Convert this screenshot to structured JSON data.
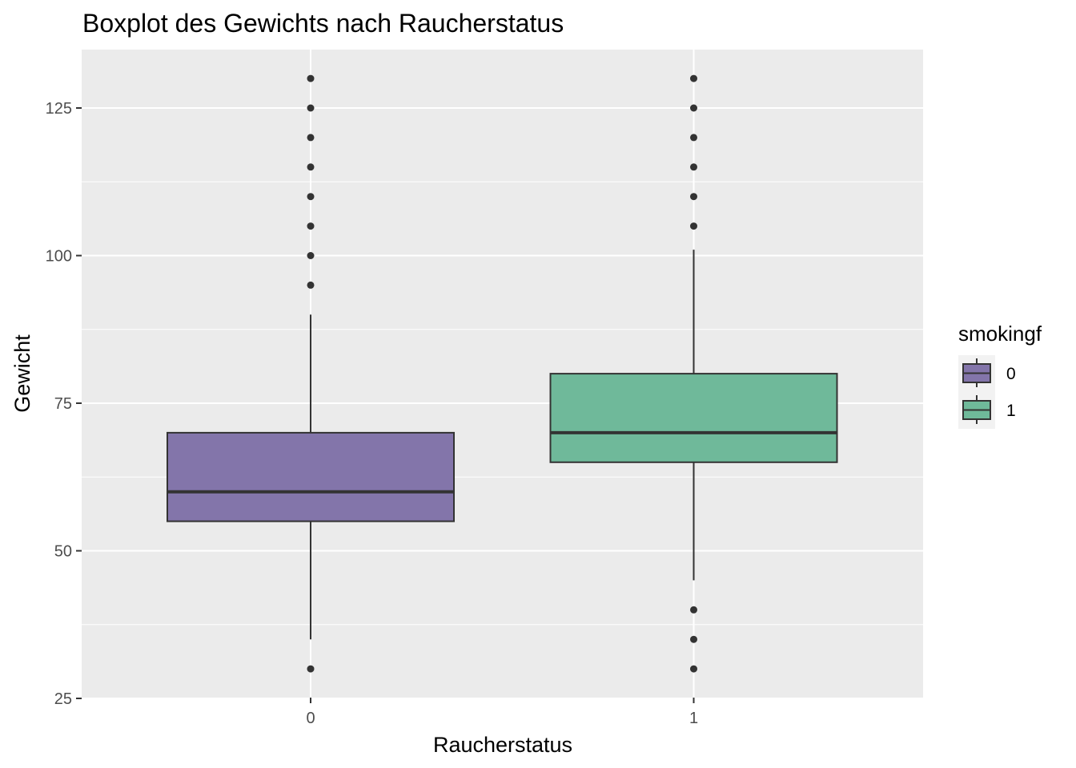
{
  "chart_data": {
    "type": "boxplot",
    "title": "Boxplot des Gewichts nach Raucherstatus",
    "xlabel": "Raucherstatus",
    "ylabel": "Gewicht",
    "ylim": [
      25,
      135
    ],
    "yticks": [
      25,
      50,
      75,
      100,
      125
    ],
    "categories": [
      "0",
      "1"
    ],
    "boxes": [
      {
        "category": "0",
        "color": "#8375aa",
        "whisker_low": 35,
        "q1": 55,
        "median": 60,
        "q3": 70,
        "whisker_high": 90,
        "outliers": [
          30,
          95,
          100,
          105,
          110,
          115,
          120,
          125,
          130
        ]
      },
      {
        "category": "1",
        "color": "#6fb99a",
        "whisker_low": 45,
        "q1": 65,
        "median": 70,
        "q3": 80,
        "whisker_high": 101,
        "outliers": [
          30,
          35,
          40,
          105,
          110,
          115,
          120,
          125,
          130
        ]
      }
    ],
    "grid": true,
    "panel_background": "#ebebeb",
    "legend": {
      "title": "smokingf",
      "placement": "right",
      "entries": [
        {
          "label": "0",
          "color": "#8375aa"
        },
        {
          "label": "1",
          "color": "#6fb99a"
        }
      ]
    }
  }
}
